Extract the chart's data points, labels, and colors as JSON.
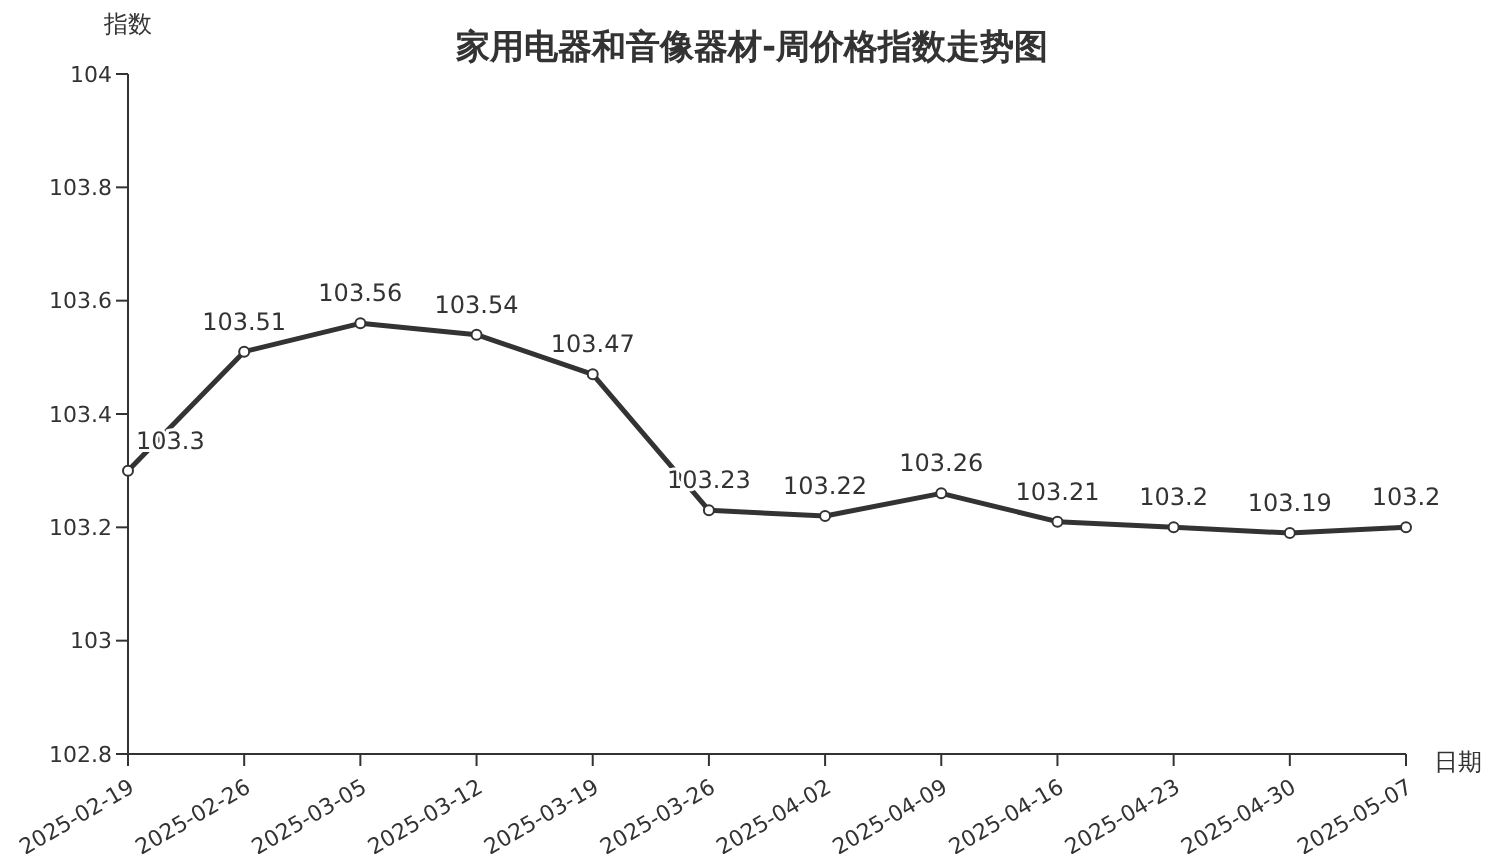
{
  "chart_data": {
    "type": "line",
    "title": "家用电器和音像器材-周价格指数走势图",
    "xlabel": "日期",
    "ylabel": "指数",
    "categories": [
      "2025-02-19",
      "2025-02-26",
      "2025-03-05",
      "2025-03-12",
      "2025-03-19",
      "2025-03-26",
      "2025-04-02",
      "2025-04-09",
      "2025-04-16",
      "2025-04-23",
      "2025-04-30",
      "2025-05-07"
    ],
    "values": [
      103.3,
      103.51,
      103.56,
      103.54,
      103.47,
      103.23,
      103.22,
      103.26,
      103.21,
      103.2,
      103.19,
      103.2
    ],
    "color": "#333333",
    "ylim": [
      102.8,
      104
    ],
    "yticks": [
      102.8,
      103,
      103.2,
      103.4,
      103.6,
      103.8,
      104
    ],
    "grid": false,
    "marker": "circle",
    "line_style": "solid",
    "data_labels": true
  }
}
